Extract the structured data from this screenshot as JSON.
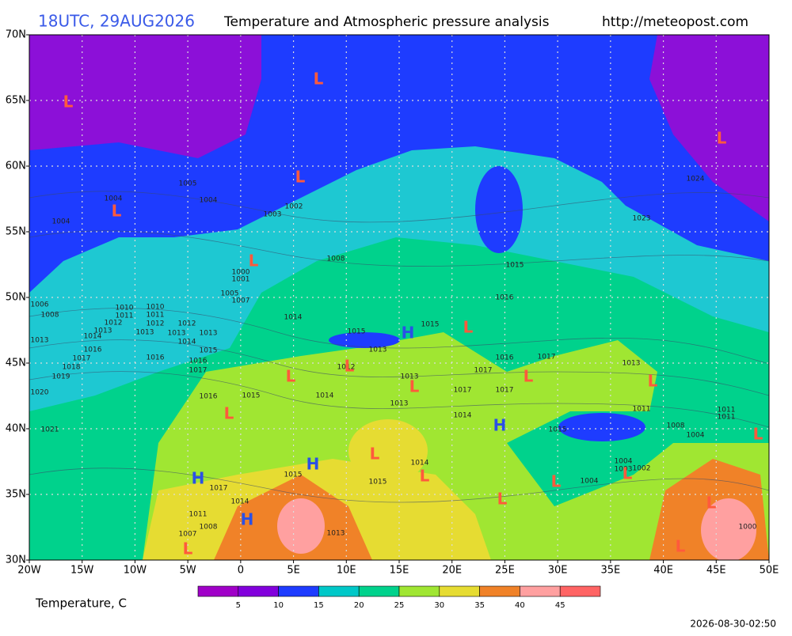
{
  "header": {
    "run": "18UTC, 29AUG2026",
    "title": "Temperature and Atmospheric pressure analysis",
    "url": "http://meteopost.com"
  },
  "lat_labels": [
    "70N",
    "65N",
    "60N",
    "55N",
    "50N",
    "45N",
    "40N",
    "35N",
    "30N"
  ],
  "lon_labels": [
    "20W",
    "15W",
    "10W",
    "5W",
    "0",
    "5E",
    "10E",
    "15E",
    "20E",
    "25E",
    "30E",
    "35E",
    "40E",
    "45E",
    "50E"
  ],
  "colorbar": {
    "title": "Temperature, C",
    "ticks": [
      "5",
      "10",
      "15",
      "20",
      "25",
      "30",
      "35",
      "40",
      "45"
    ],
    "colors": [
      "#a000c8",
      "#8200dc",
      "#1e3cff",
      "#00c8c8",
      "#00d28c",
      "#a0e632",
      "#e6dc32",
      "#f08228",
      "#ffa0a0",
      "#ff6464"
    ]
  },
  "markers": [
    "L",
    "L",
    "L",
    "L",
    "L",
    "L",
    "L",
    "L",
    "L",
    "L",
    "L",
    "L",
    "L",
    "L",
    "L",
    "L",
    "L",
    "L",
    "L",
    "L",
    "L",
    "L",
    "H",
    "H",
    "H",
    "H",
    "H"
  ],
  "low_color": "#ff5a3c",
  "high_color": "#2a50e6",
  "isobar_labels": [
    "1004",
    "1005",
    "1004",
    "1004",
    "1003",
    "1002",
    "1008",
    "1000",
    "1001",
    "1005",
    "1007",
    "1006",
    "1008",
    "1010",
    "1010",
    "1011",
    "1011",
    "1012",
    "1012",
    "1012",
    "1013",
    "1013",
    "1013",
    "1013",
    "1014",
    "1013",
    "1014",
    "1014",
    "1016",
    "1015",
    "1017",
    "1016",
    "1016",
    "1018",
    "1017",
    "1019",
    "1015",
    "1015",
    "1013",
    "1012",
    "1016",
    "1017",
    "1013",
    "1013",
    "1017",
    "1017",
    "1017",
    "1014",
    "1015",
    "1016",
    "1020",
    "1013",
    "1014",
    "1011",
    "1011",
    "1011",
    "1008",
    "1015",
    "1004",
    "1021",
    "1015",
    "1014",
    "1015",
    "1004",
    "1003",
    "1002",
    "1004",
    "1017",
    "1014",
    "1011",
    "1008",
    "1007",
    "1013",
    "1000",
    "1024",
    "1023",
    "1015",
    "1016"
  ],
  "timestamp": "2026-08-30-02:50"
}
